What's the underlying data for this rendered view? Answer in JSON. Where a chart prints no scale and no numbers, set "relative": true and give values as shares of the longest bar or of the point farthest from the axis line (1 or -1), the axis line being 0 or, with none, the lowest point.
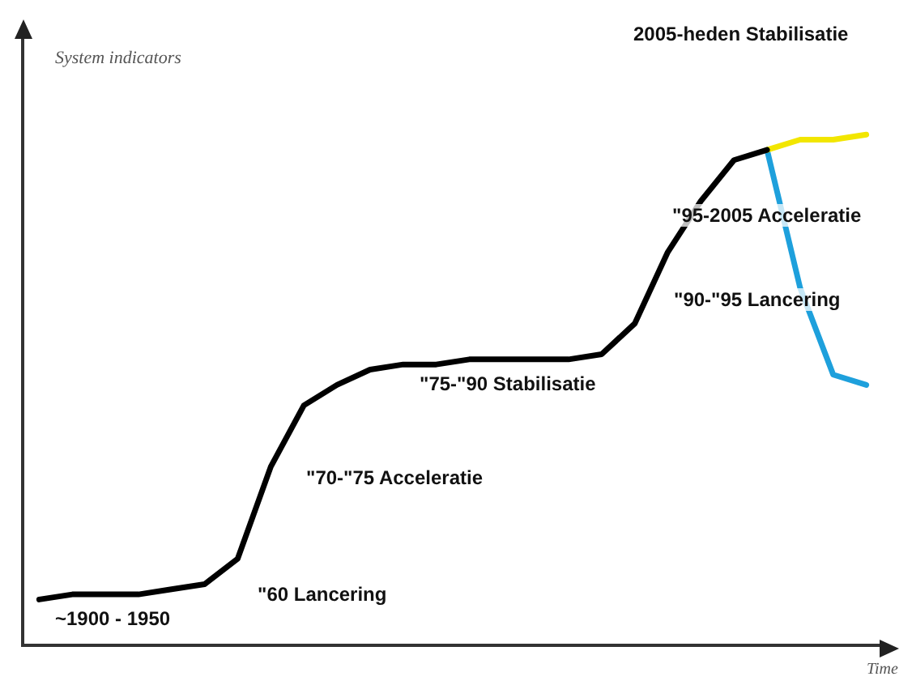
{
  "chart_data": {
    "type": "line",
    "relative": true,
    "ylabel": "System indicators",
    "xlabel": "Time",
    "legend": false,
    "grid": false,
    "marker": "none",
    "line_style": "solid",
    "categories": [
      null,
      null,
      null,
      null,
      null,
      null,
      null,
      null,
      null,
      null,
      null,
      null,
      null,
      null,
      null,
      null,
      null,
      null,
      null,
      null,
      null,
      null,
      null,
      null,
      null,
      null
    ],
    "series": [
      {
        "color": "#000000",
        "values": [
          0.09,
          0.1,
          0.1,
          0.1,
          0.11,
          0.12,
          0.17,
          0.35,
          0.47,
          0.51,
          0.54,
          0.55,
          0.55,
          0.56,
          0.56,
          0.56,
          0.56,
          0.57,
          0.63,
          0.77,
          0.87,
          0.95,
          0.97,
          null,
          null,
          null
        ]
      },
      {
        "color": "#f2e600",
        "values": [
          null,
          null,
          null,
          null,
          null,
          null,
          null,
          null,
          null,
          null,
          null,
          null,
          null,
          null,
          null,
          null,
          null,
          null,
          null,
          null,
          null,
          null,
          0.97,
          0.99,
          0.99,
          1
        ]
      },
      {
        "color": "#1ea0dc",
        "values": [
          null,
          null,
          null,
          null,
          null,
          null,
          null,
          null,
          null,
          null,
          null,
          null,
          null,
          null,
          null,
          null,
          null,
          null,
          null,
          null,
          null,
          null,
          0.97,
          0.7,
          0.53,
          0.51
        ]
      }
    ],
    "annotations": [
      "2005-heden Stabilisatie",
      "\"95-2005 Acceleratie",
      "\"90-\"95 Lancering",
      "\"75-\"90 Stabilisatie",
      "\"70-\"75 Acceleratie",
      "\"60 Lancering",
      "~1900 - 1950"
    ]
  }
}
